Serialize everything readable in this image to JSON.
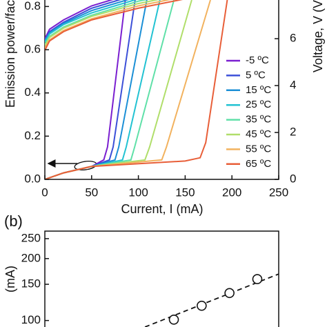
{
  "chart_data": [
    {
      "type": "line",
      "xlabel": "Current, I (mA)",
      "ylabel": "Emission power/fac",
      "y2label": "Voltage, V (V",
      "xlim": [
        0,
        250
      ],
      "xticks": [
        0,
        50,
        100,
        150,
        200,
        250
      ],
      "ylim": [
        0,
        0.83
      ],
      "yticks": [
        {
          "value": 0,
          "label": "0.0"
        },
        0.2,
        0.4,
        0.6,
        0.8
      ],
      "y2lim": [
        0,
        7.65
      ],
      "y2ticks": [
        0,
        2,
        4,
        6
      ],
      "series": [
        {
          "name": "-5 ºC",
          "color": "#7a1fd0",
          "x": [
            0,
            20,
            50,
            63,
            67,
            86
          ],
          "values": [
            0,
            0.03,
            0.06,
            0.09,
            0.15,
            0.83
          ]
        },
        {
          "name": "5 ºC",
          "color": "#3b4fd8",
          "x": [
            0,
            20,
            50,
            69,
            73,
            96.5
          ],
          "values": [
            0,
            0.03,
            0.06,
            0.09,
            0.15,
            0.83
          ]
        },
        {
          "name": "15 ºC",
          "color": "#1b8fd6",
          "x": [
            0,
            20,
            50,
            75,
            79,
            109
          ],
          "values": [
            0,
            0.03,
            0.06,
            0.09,
            0.15,
            0.83
          ]
        },
        {
          "name": "25 ºC",
          "color": "#22c2d2",
          "x": [
            0,
            20,
            50,
            83,
            87,
            123
          ],
          "values": [
            0,
            0.03,
            0.06,
            0.09,
            0.15,
            0.83
          ]
        },
        {
          "name": "35 ºC",
          "color": "#5fe0a8",
          "x": [
            0,
            20,
            50,
            92,
            96,
            138
          ],
          "values": [
            0,
            0.03,
            0.06,
            0.09,
            0.15,
            0.83
          ]
        },
        {
          "name": "45 ºC",
          "color": "#b0de6a",
          "x": [
            0,
            20,
            50,
            107,
            112,
            157
          ],
          "values": [
            0,
            0.03,
            0.06,
            0.09,
            0.15,
            0.83
          ]
        },
        {
          "name": "55 ºC",
          "color": "#f2b25e",
          "x": [
            0,
            20,
            50,
            125,
            130,
            177
          ],
          "values": [
            0,
            0.03,
            0.06,
            0.09,
            0.15,
            0.83
          ]
        },
        {
          "name": "65 ºC",
          "color": "#e85e38",
          "x": [
            0,
            20,
            50,
            150,
            166,
            172,
            195
          ],
          "values": [
            0,
            0.03,
            0.06,
            0.085,
            0.1,
            0.17,
            0.83
          ]
        },
        {
          "axis": "y2",
          "color": "#7a1fd0",
          "x": [
            0,
            5,
            20,
            50,
            100
          ],
          "values": [
            6.0,
            6.4,
            6.8,
            7.4,
            8.0
          ]
        },
        {
          "axis": "y2",
          "color": "#3b4fd8",
          "x": [
            0,
            5,
            20,
            50,
            100
          ],
          "values": [
            5.95,
            6.3,
            6.7,
            7.3,
            7.9
          ]
        },
        {
          "axis": "y2",
          "color": "#1b8fd6",
          "x": [
            0,
            5,
            20,
            50,
            100
          ],
          "values": [
            5.9,
            6.25,
            6.65,
            7.2,
            7.8
          ]
        },
        {
          "axis": "y2",
          "color": "#22c2d2",
          "x": [
            0,
            5,
            20,
            50,
            100,
            150
          ],
          "values": [
            5.85,
            6.2,
            6.6,
            7.1,
            7.7,
            8.1
          ]
        },
        {
          "axis": "y2",
          "color": "#5fe0a8",
          "x": [
            0,
            5,
            20,
            50,
            100,
            150
          ],
          "values": [
            5.75,
            6.1,
            6.5,
            7.0,
            7.6,
            8.0
          ]
        },
        {
          "axis": "y2",
          "color": "#b0de6a",
          "x": [
            0,
            5,
            20,
            50,
            100,
            150
          ],
          "values": [
            5.7,
            6.05,
            6.45,
            6.95,
            7.5,
            7.9
          ]
        },
        {
          "axis": "y2",
          "color": "#f2b25e",
          "x": [
            0,
            5,
            20,
            50,
            100,
            150
          ],
          "values": [
            5.6,
            5.95,
            6.35,
            6.85,
            7.4,
            7.8
          ]
        },
        {
          "axis": "y2",
          "color": "#e85e38",
          "x": [
            0,
            5,
            20,
            50,
            100,
            150
          ],
          "values": [
            5.5,
            5.9,
            6.3,
            6.8,
            7.3,
            7.7
          ]
        }
      ]
    },
    {
      "type": "scatter",
      "panel_label": "(b)",
      "ylabel": "(mA)",
      "xlim": [
        -11.4,
        72.7
      ],
      "ylim": [
        93,
        272
      ],
      "ylog": true,
      "yticks": [
        100,
        150,
        200,
        250
      ],
      "x": [
        35,
        45,
        55,
        65
      ],
      "values": [
        101,
        118,
        136,
        159
      ],
      "fit": {
        "x": [
          24.6,
          72.7
        ],
        "values": [
          93,
          168.3
        ]
      }
    }
  ]
}
